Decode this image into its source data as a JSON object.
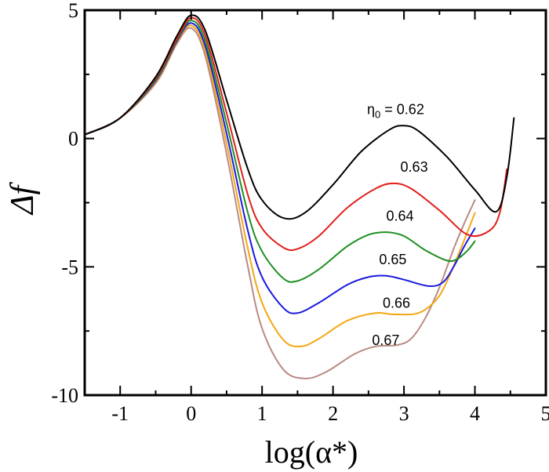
{
  "chart_data": {
    "type": "line",
    "xlabel": "log(α*)",
    "ylabel": "Δf",
    "xlim": [
      -1.5,
      5
    ],
    "ylim": [
      -10,
      5
    ],
    "x_ticks": [
      -1,
      0,
      1,
      2,
      3,
      4,
      5
    ],
    "y_ticks": [
      -10,
      -5,
      0,
      5
    ],
    "grid": false,
    "legend": "none",
    "series": [
      {
        "name": "0.62",
        "label": "η0 = 0.62",
        "color": "#000000",
        "x": [
          -1.5,
          -1.0,
          -0.5,
          -0.2,
          0.0,
          0.2,
          0.5,
          0.8,
          1.0,
          1.3,
          1.6,
          2.0,
          2.4,
          2.8,
          3.0,
          3.2,
          3.6,
          4.0,
          4.3,
          4.45,
          4.55
        ],
        "y": [
          0.15,
          0.8,
          2.4,
          4.0,
          4.8,
          4.2,
          1.5,
          -1.2,
          -2.4,
          -3.1,
          -2.9,
          -1.8,
          -0.5,
          0.35,
          0.5,
          0.3,
          -0.7,
          -2.0,
          -2.85,
          -1.5,
          0.8
        ]
      },
      {
        "name": "0.63",
        "color": "#e0201c",
        "x": [
          -1.5,
          -1.0,
          -0.5,
          -0.2,
          0.0,
          0.2,
          0.5,
          0.8,
          1.0,
          1.3,
          1.5,
          1.8,
          2.2,
          2.6,
          2.85,
          3.1,
          3.5,
          3.9,
          4.2,
          4.35,
          4.45
        ],
        "y": [
          0.15,
          0.8,
          2.35,
          3.9,
          4.7,
          4.0,
          1.0,
          -2.2,
          -3.5,
          -4.25,
          -4.3,
          -3.8,
          -2.7,
          -1.95,
          -1.75,
          -1.95,
          -2.8,
          -3.75,
          -3.6,
          -2.9,
          -1.2
        ]
      },
      {
        "name": "0.64",
        "color": "#1e8f22",
        "x": [
          -1.5,
          -1.0,
          -0.5,
          -0.2,
          0.0,
          0.2,
          0.5,
          0.8,
          1.0,
          1.3,
          1.5,
          1.8,
          2.2,
          2.5,
          2.75,
          3.0,
          3.3,
          3.6,
          3.75,
          3.9,
          4.0
        ],
        "y": [
          0.15,
          0.8,
          2.3,
          3.85,
          4.6,
          3.8,
          0.6,
          -2.9,
          -4.4,
          -5.45,
          -5.55,
          -5.1,
          -4.2,
          -3.75,
          -3.65,
          -3.8,
          -4.35,
          -4.75,
          -4.7,
          -4.35,
          -4.0
        ]
      },
      {
        "name": "0.65",
        "color": "#1a1ae0",
        "x": [
          -1.5,
          -1.0,
          -0.5,
          -0.2,
          0.0,
          0.2,
          0.5,
          0.8,
          1.0,
          1.3,
          1.5,
          1.8,
          2.2,
          2.5,
          2.75,
          3.0,
          3.35,
          3.55,
          3.7,
          3.85,
          4.0
        ],
        "y": [
          0.15,
          0.8,
          2.25,
          3.8,
          4.5,
          3.6,
          0.2,
          -3.6,
          -5.4,
          -6.6,
          -6.8,
          -6.4,
          -5.7,
          -5.4,
          -5.35,
          -5.5,
          -5.75,
          -5.6,
          -5.0,
          -4.2,
          -3.5
        ]
      },
      {
        "name": "0.66",
        "color": "#f5a712",
        "x": [
          -1.5,
          -1.0,
          -0.5,
          -0.2,
          0.0,
          0.2,
          0.5,
          0.8,
          1.0,
          1.3,
          1.55,
          1.8,
          2.2,
          2.6,
          2.85,
          3.2,
          3.45,
          3.6,
          3.8,
          4.0
        ],
        "y": [
          0.15,
          0.8,
          2.2,
          3.75,
          4.4,
          3.4,
          -0.2,
          -4.3,
          -6.4,
          -7.85,
          -8.1,
          -7.8,
          -7.1,
          -6.8,
          -6.85,
          -6.8,
          -6.3,
          -5.6,
          -4.3,
          -2.9
        ]
      },
      {
        "name": "0.67",
        "color": "#b88b82",
        "x": [
          -1.5,
          -1.0,
          -0.5,
          -0.2,
          0.0,
          0.2,
          0.5,
          0.8,
          1.0,
          1.3,
          1.6,
          1.9,
          2.3,
          2.6,
          2.9,
          3.1,
          3.3,
          3.5,
          3.7,
          3.85,
          4.0
        ],
        "y": [
          0.15,
          0.8,
          2.15,
          3.7,
          4.3,
          3.2,
          -0.6,
          -5.0,
          -7.4,
          -9.0,
          -9.35,
          -9.1,
          -8.4,
          -8.1,
          -8.05,
          -7.8,
          -7.0,
          -5.8,
          -4.3,
          -3.3,
          -2.4
        ]
      }
    ],
    "annotations": [
      {
        "text": "η0 = 0.62",
        "x": 2.48,
        "y": 0.95
      },
      {
        "text": "0.63",
        "x": 2.95,
        "y": -1.3
      },
      {
        "text": "0.64",
        "x": 2.75,
        "y": -3.2
      },
      {
        "text": "0.65",
        "x": 2.65,
        "y": -4.9
      },
      {
        "text": "0.66",
        "x": 2.7,
        "y": -6.6
      },
      {
        "text": "0.67",
        "x": 2.55,
        "y": -8.05
      }
    ]
  }
}
